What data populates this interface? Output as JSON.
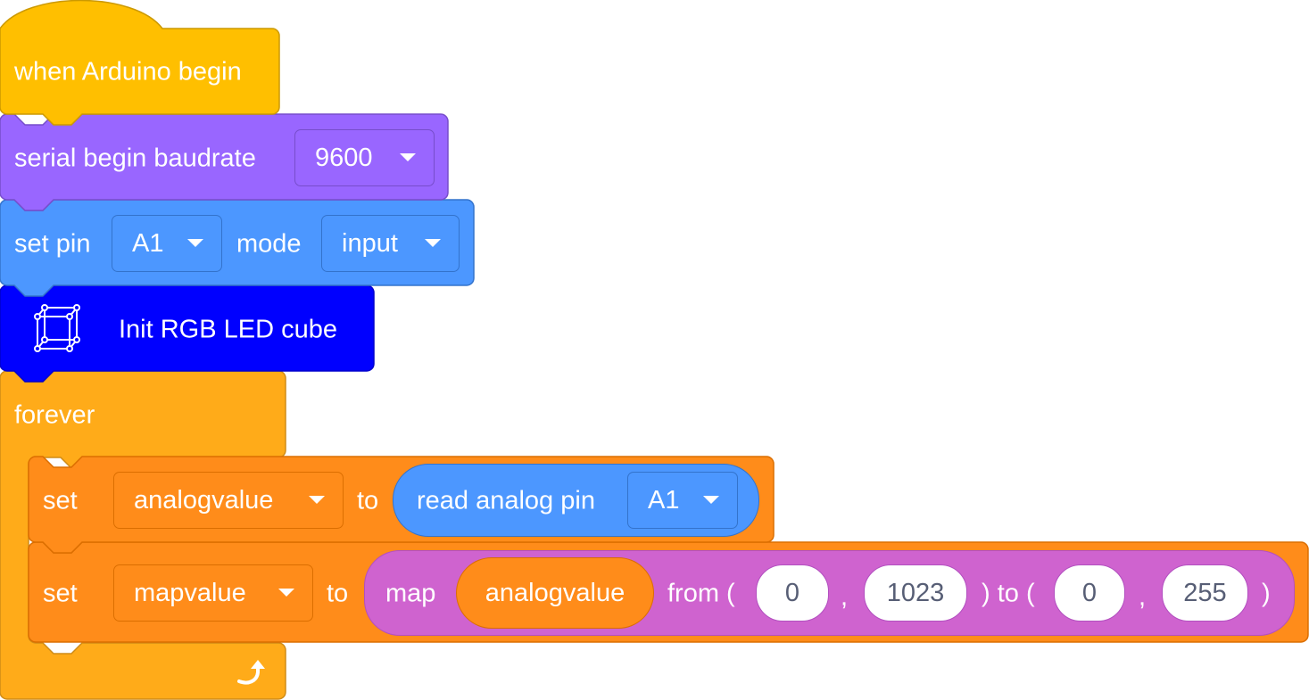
{
  "colors": {
    "event": "#ffbf00",
    "serial": "#9966ff",
    "pin": "#4c97ff",
    "led": "#0000ff",
    "control": "#ffab19",
    "variable": "#ff8c1a",
    "operator": "#cf63cf"
  },
  "hat": {
    "label": "when Arduino begin"
  },
  "serial_block": {
    "label": "serial begin baudrate",
    "baudrate": "9600"
  },
  "pin_block": {
    "label": "set pin",
    "pin": "A1",
    "mode_label": "mode",
    "mode": "input"
  },
  "led_block": {
    "icon": "led-cube-icon",
    "label": "Init RGB LED cube"
  },
  "forever_block": {
    "label": "forever",
    "loop_icon": "loop-arrow-icon"
  },
  "set_analog": {
    "set_label": "set",
    "variable": "analogvalue",
    "to_label": "to",
    "reporter_label": "read analog pin",
    "reporter_pin": "A1"
  },
  "set_map": {
    "set_label": "set",
    "variable": "mapvalue",
    "to_label": "to",
    "map_label": "map",
    "map_variable": "analogvalue",
    "from_label": "from (",
    "from_low": "0",
    "comma1": ",",
    "from_high": "1023",
    "to_range_label": ") to (",
    "to_low": "0",
    "comma2": ",",
    "to_high": "255",
    "close_paren": ")"
  }
}
